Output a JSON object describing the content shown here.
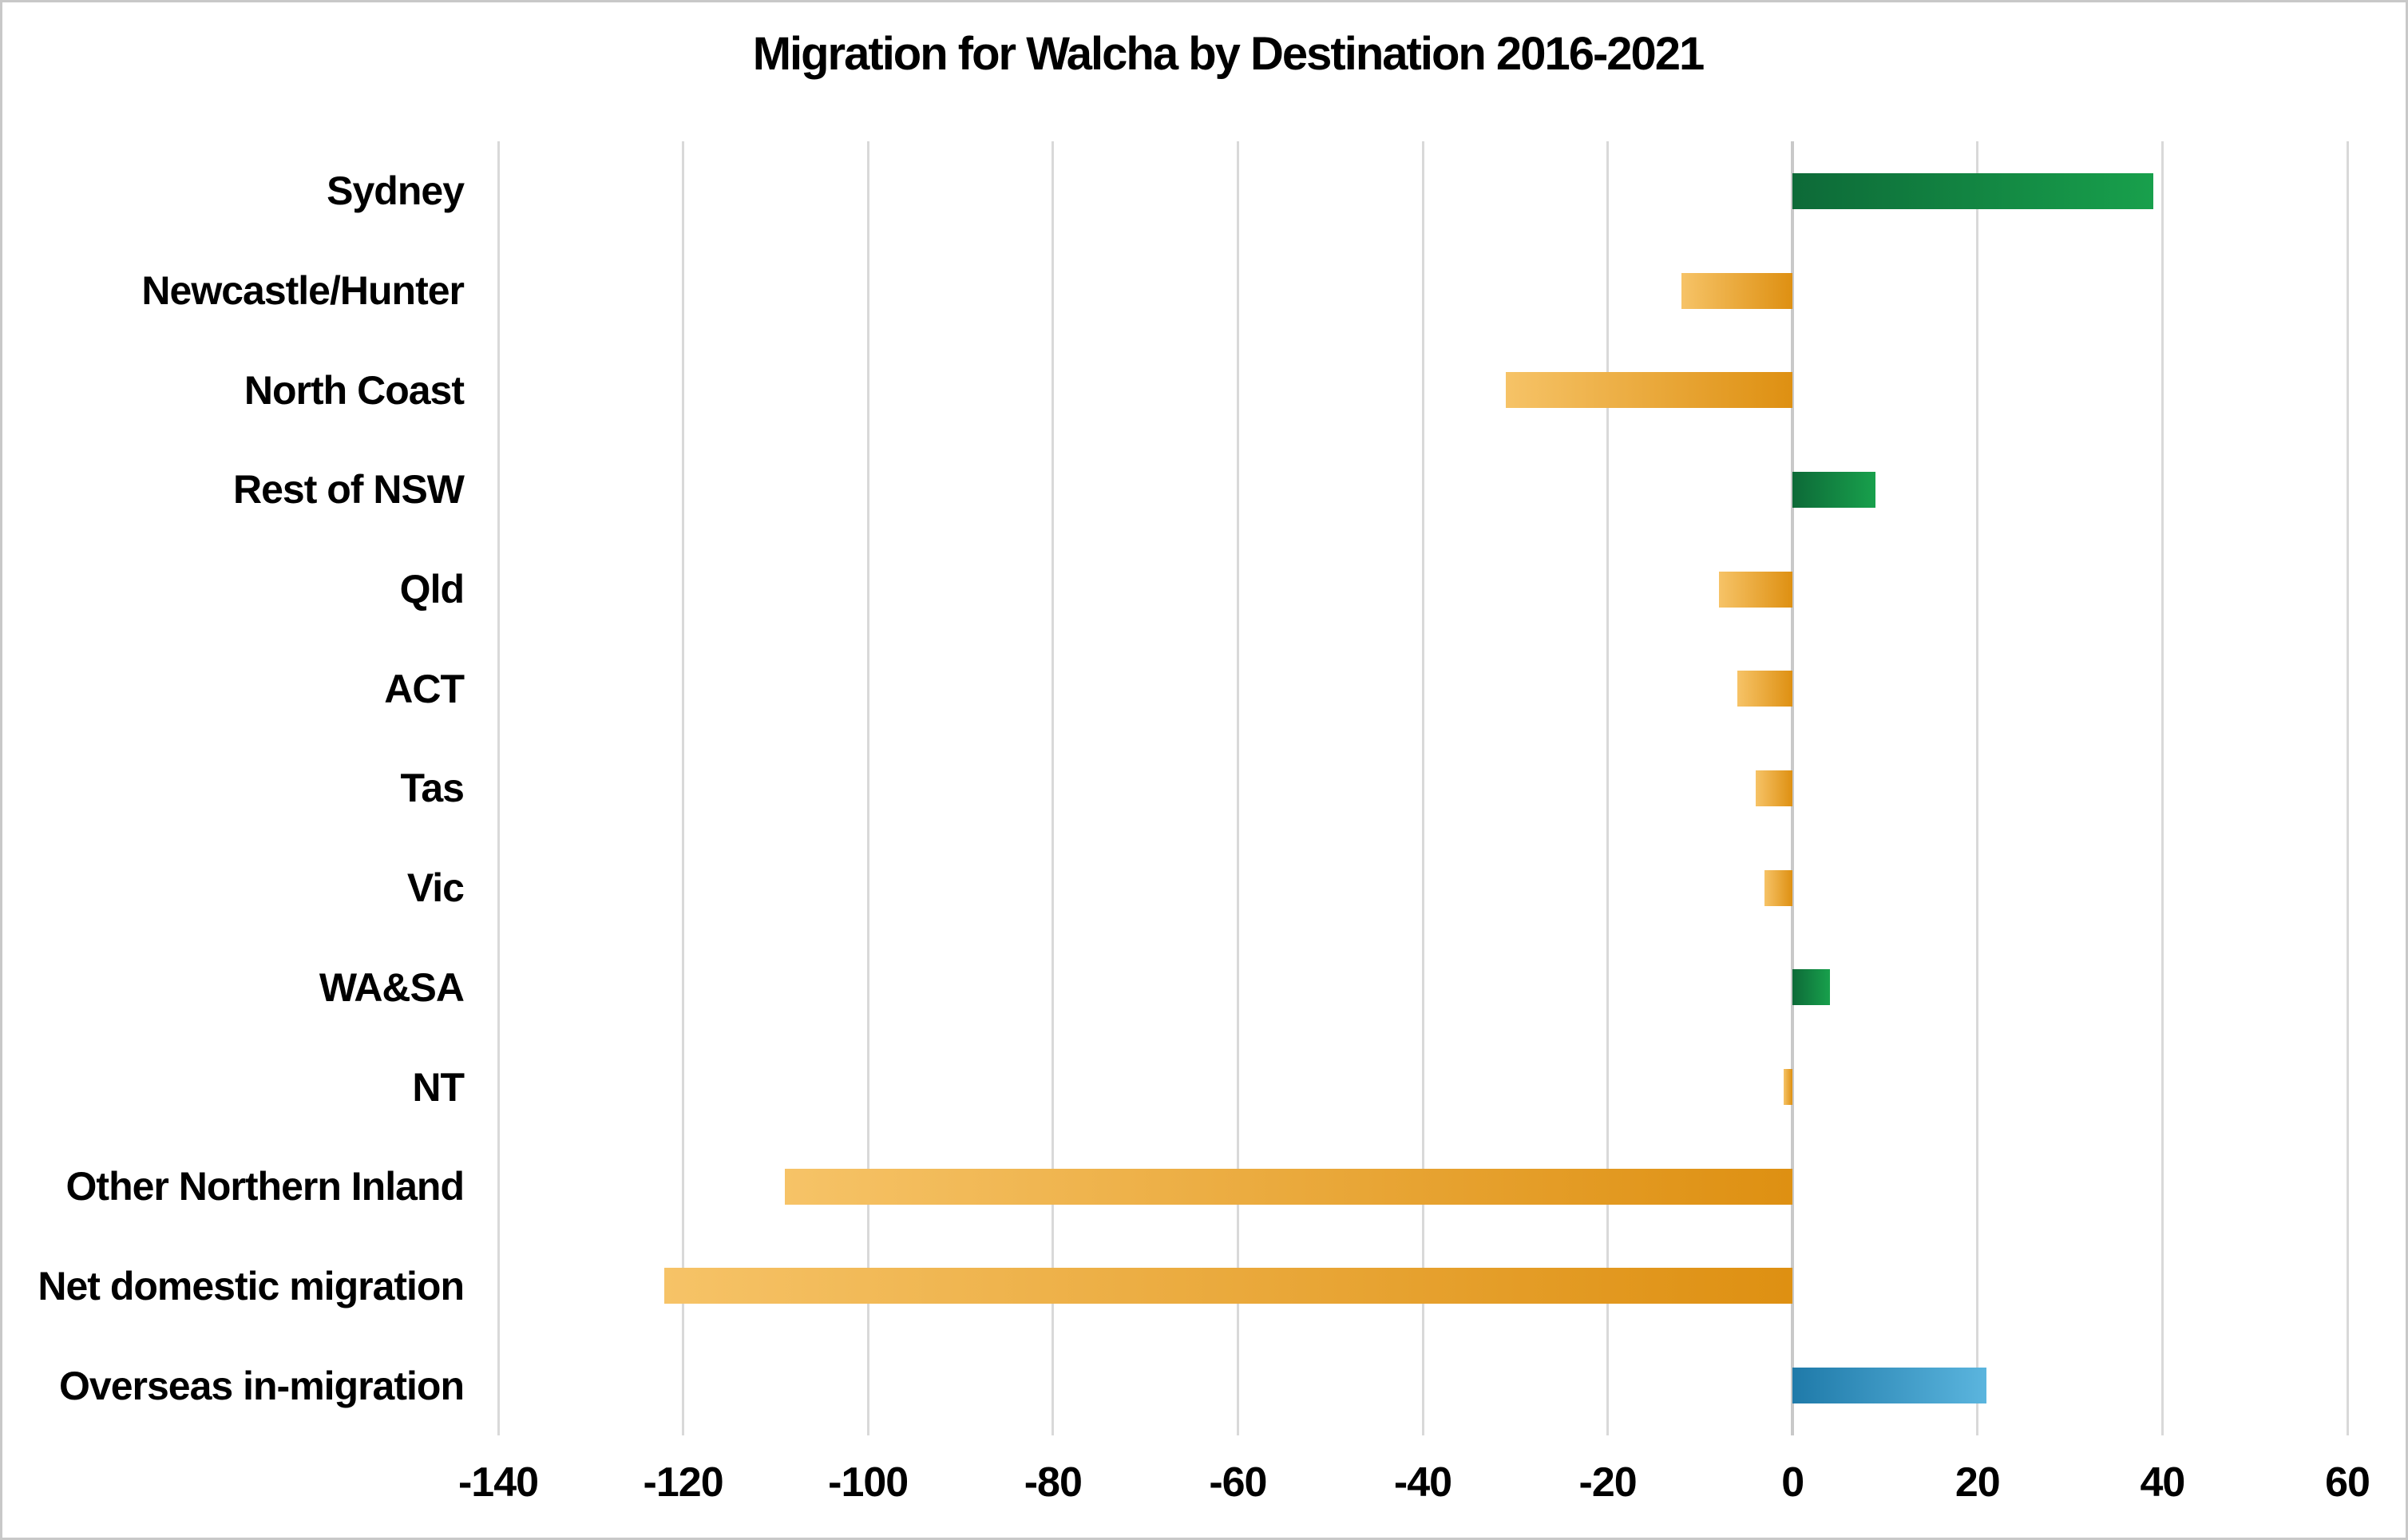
{
  "title": "Migration for Walcha by Destination 2016-2021",
  "chart_data": {
    "type": "bar",
    "orientation": "horizontal",
    "title": "Migration for Walcha by Destination 2016-2021",
    "categories": [
      "Sydney",
      "Newcastle/Hunter",
      "North Coast",
      "Rest of NSW",
      "Qld",
      "ACT",
      "Tas",
      "Vic",
      "WA&SA",
      "NT",
      "Other Northern Inland",
      "Net domestic migration",
      "Overseas in-migration"
    ],
    "values": [
      39,
      -12,
      -31,
      9,
      -8,
      -6,
      -4,
      -3,
      4,
      -1,
      -109,
      -122,
      21
    ],
    "bar_styles": [
      "positive",
      "negative",
      "negative",
      "positive",
      "negative",
      "negative",
      "negative",
      "negative",
      "positive",
      "negative",
      "negative",
      "negative",
      "blue"
    ],
    "x_ticks": [
      -140,
      -120,
      -100,
      -80,
      -60,
      -40,
      -20,
      0,
      20,
      40,
      60
    ],
    "xlim": [
      -140,
      60
    ],
    "xlabel": "",
    "ylabel": "",
    "grid": true,
    "legend": false,
    "colors": {
      "positive_gradient": [
        "#0d6a38",
        "#18a04c"
      ],
      "negative_gradient": [
        "#f6c367",
        "#de9012"
      ],
      "blue_gradient": [
        "#1f7aa9",
        "#5bb5de"
      ],
      "gridline": "#d9d9d9",
      "zero_line": "#c9c9c9",
      "border": "#c8c8c8",
      "background": "#ffffff",
      "text": "#000000"
    }
  }
}
